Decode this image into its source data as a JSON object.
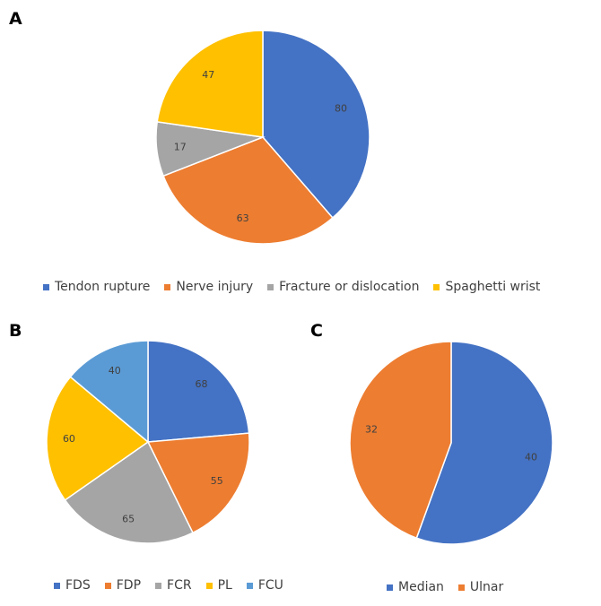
{
  "panels": {
    "a": {
      "letter": "A"
    },
    "b": {
      "letter": "B"
    },
    "c": {
      "letter": "C"
    }
  },
  "chart_data": [
    {
      "type": "pie",
      "panel": "A",
      "categories": [
        "Tendon rupture",
        "Nerve injury",
        "Fracture or dislocation",
        "Spaghetti wrist"
      ],
      "values": [
        80,
        63,
        17,
        47
      ],
      "colors": [
        "#4472C4",
        "#ED7D31",
        "#A5A5A5",
        "#FFC000"
      ],
      "legend_position": "bottom"
    },
    {
      "type": "pie",
      "panel": "B",
      "categories": [
        "FDS",
        "FDP",
        "FCR",
        "PL",
        "FCU"
      ],
      "values": [
        68,
        55,
        65,
        60,
        40
      ],
      "colors": [
        "#4472C4",
        "#ED7D31",
        "#A5A5A5",
        "#FFC000",
        "#5B9BD5"
      ],
      "legend_position": "bottom"
    },
    {
      "type": "pie",
      "panel": "C",
      "categories": [
        "Median",
        "Ulnar"
      ],
      "values": [
        40,
        32
      ],
      "colors": [
        "#4472C4",
        "#ED7D31"
      ],
      "legend_position": "bottom"
    }
  ]
}
